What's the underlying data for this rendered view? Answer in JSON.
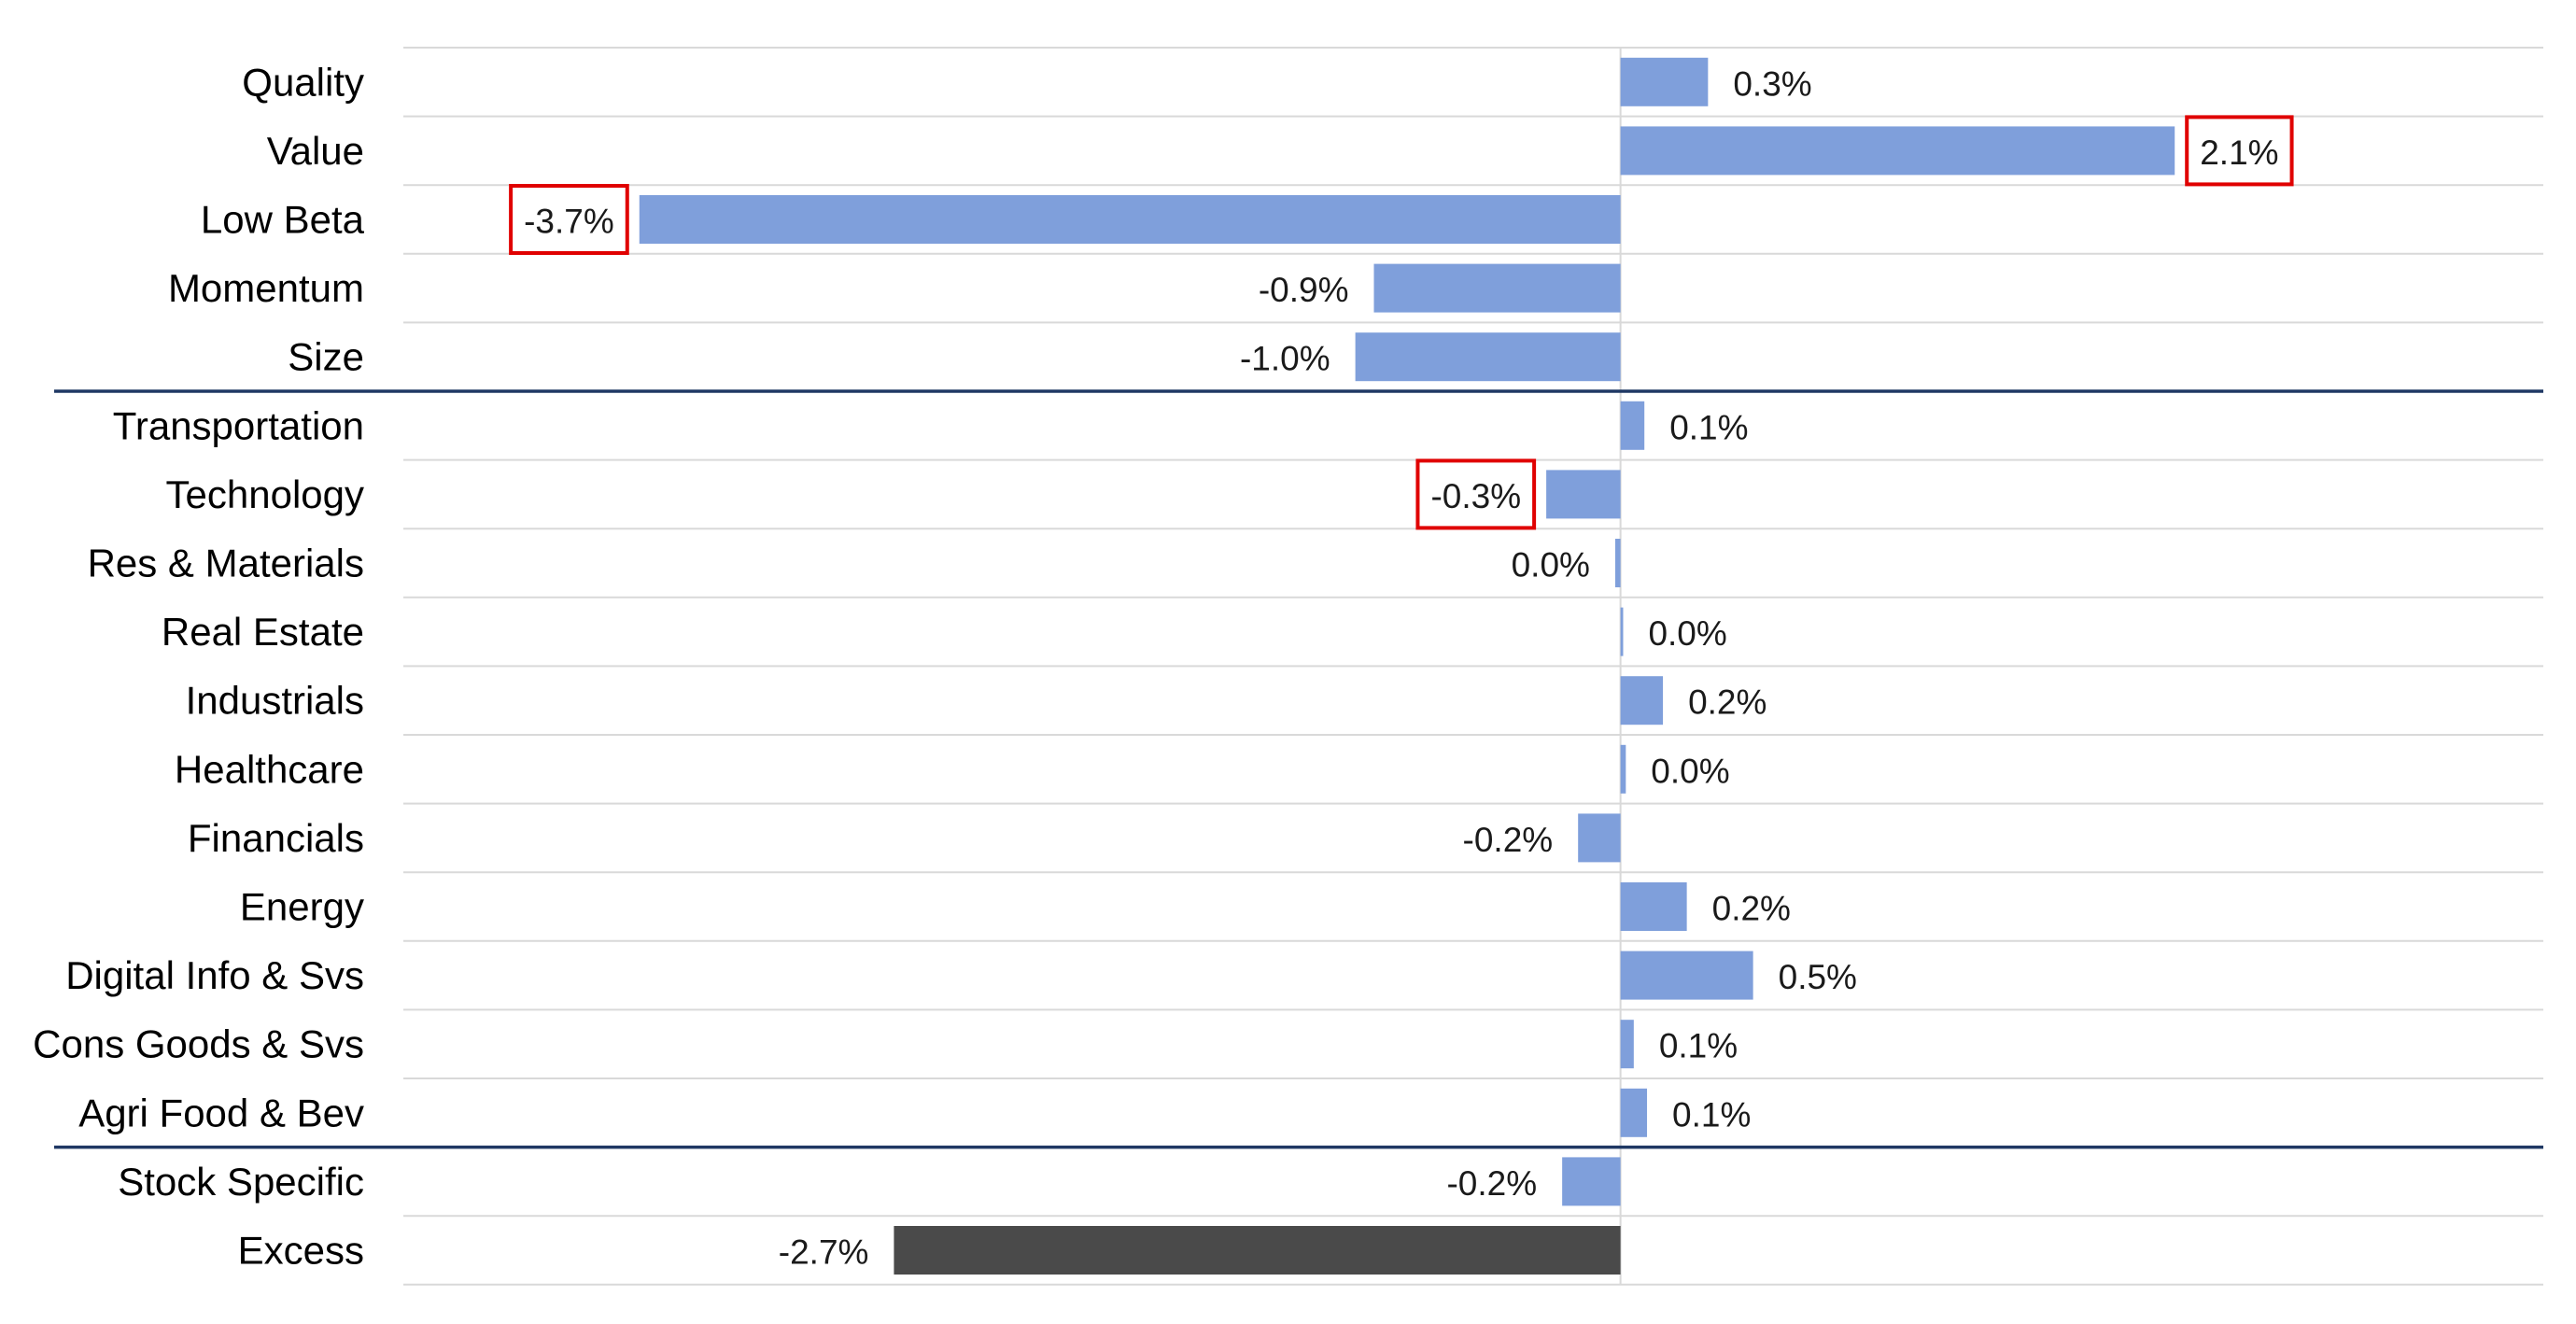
{
  "chart_data": {
    "type": "bar",
    "orientation": "horizontal",
    "title": "",
    "xlabel": "",
    "ylabel": "",
    "grid": true,
    "legend": "none",
    "xlim": [
      -4.59,
      3.48
    ],
    "colors": {
      "bar": "#7f9fdb",
      "total_bar": "#4a4a4a",
      "grid": "#d9d9d9",
      "separator": "#1f3864",
      "highlight_box": "#e00000"
    },
    "categories": [
      "Quality",
      "Value",
      "Low Beta",
      "Momentum",
      "Size",
      "Transportation",
      "Technology",
      "Res & Materials",
      "Real Estate",
      "Industrials",
      "Healthcare",
      "Financials",
      "Energy",
      "Digital Info & Svs",
      "Cons Goods & Svs",
      "Agri Food & Bev",
      "Stock Specific",
      "Excess"
    ],
    "values": [
      0.33,
      2.09,
      -3.7,
      -0.93,
      -1.0,
      0.09,
      -0.28,
      -0.02,
      0.01,
      0.16,
      0.02,
      -0.16,
      0.25,
      0.5,
      0.05,
      0.1,
      -0.22,
      -2.74
    ],
    "data_labels": [
      "0.3%",
      "2.1%",
      "-3.7%",
      "-0.9%",
      "-1.0%",
      "0.1%",
      "-0.3%",
      "0.0%",
      "0.0%",
      "0.2%",
      "0.0%",
      "-0.2%",
      "0.2%",
      "0.5%",
      "0.1%",
      "0.1%",
      "-0.2%",
      "-2.7%"
    ],
    "highlighted": [
      "Low Beta",
      "Value",
      "Technology"
    ],
    "total_category": "Excess",
    "group_separators_after": [
      "Size",
      "Agri Food & Bev"
    ]
  }
}
